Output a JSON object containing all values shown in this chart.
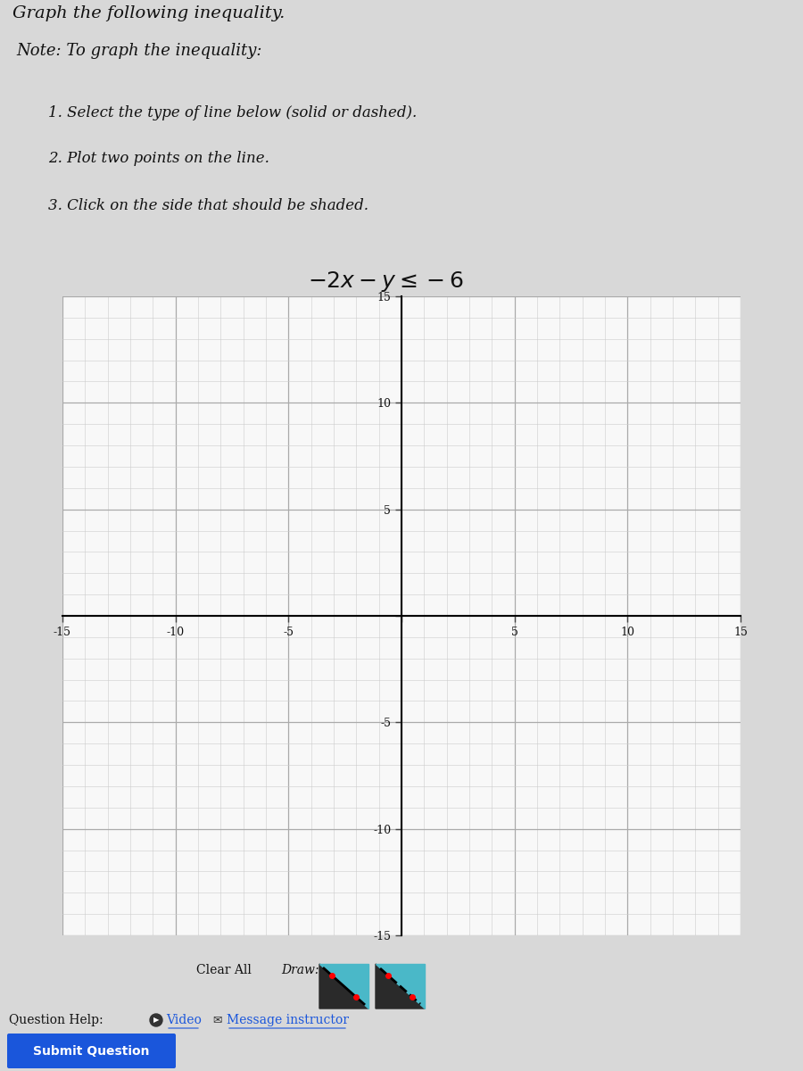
{
  "title_top": "Graph the following inequality.",
  "note_title": "Note: To graph the inequality:",
  "instructions": [
    "1. Select the type of line below (solid or dashed).",
    "2. Plot two points on the line.",
    "3. Click on the side that should be shaded."
  ],
  "inequality_label": "-2x - y \\u2264 -6",
  "xlim": [
    -15,
    15
  ],
  "ylim": [
    -15,
    15
  ],
  "xticks": [
    -15,
    -10,
    -5,
    0,
    5,
    10,
    15
  ],
  "yticks": [
    -15,
    -10,
    -5,
    0,
    5,
    10,
    15
  ],
  "xtick_labels": [
    "-15",
    "-10",
    "-5",
    "",
    "5",
    "10",
    "15"
  ],
  "ytick_labels": [
    "-15",
    "-10",
    "-5",
    "",
    "5",
    "10",
    "15"
  ],
  "grid_major_color": "#aaaaaa",
  "grid_minor_color": "#cccccc",
  "axis_color": "#000000",
  "bg_color_page": "#d8d8d8",
  "bg_color_card": "#e8e8e8",
  "bg_color_graph_panel": "#e0e0e0",
  "bg_color_graph": "#f8f8f8",
  "text_color": "#111111",
  "submit_btn_color": "#1a56db",
  "submit_btn_text": "Submit Question",
  "bottom_text1": "Question Help:",
  "bottom_link1": "Video",
  "bottom_link2": "Message instructor",
  "clear_all_text": "Clear All",
  "draw_text": "Draw:",
  "title_fontsize": 14,
  "note_fontsize": 13,
  "instr_fontsize": 12,
  "ineq_fontsize": 18
}
